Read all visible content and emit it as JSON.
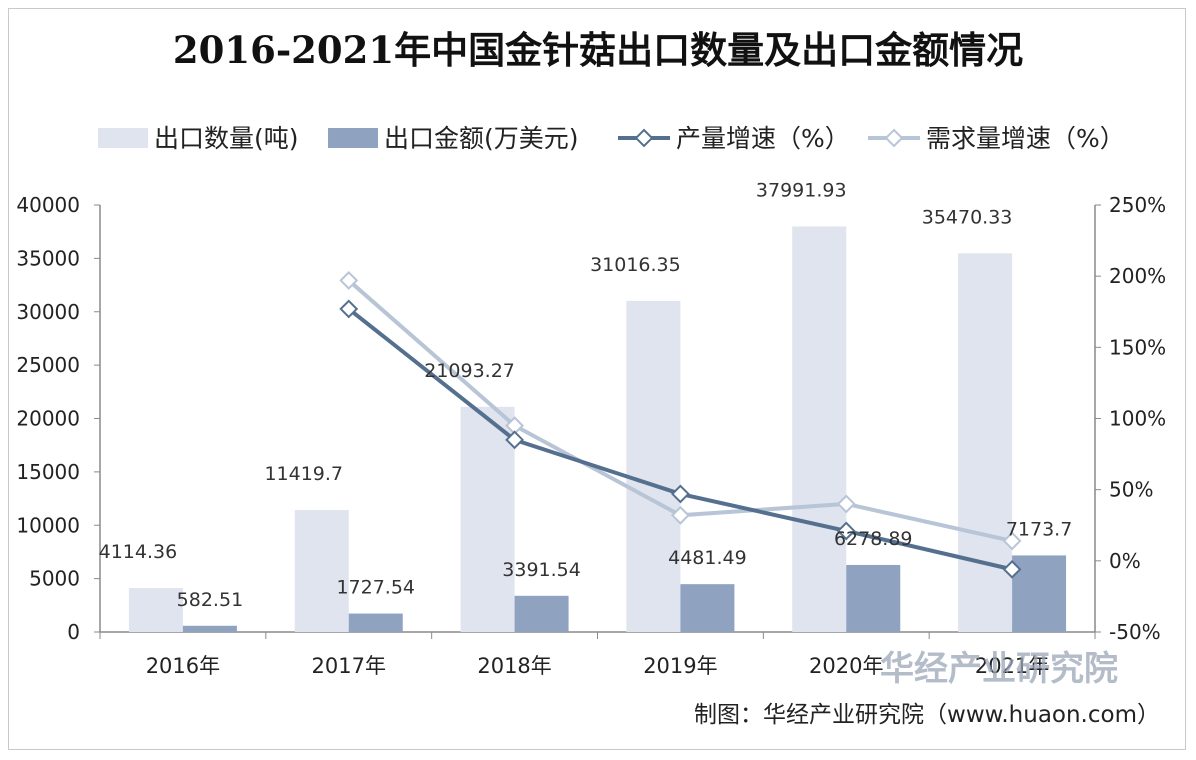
{
  "chart_data": {
    "type": "bar",
    "title": "2016-2021年中国金针菇出口数量及出口金额情况",
    "categories": [
      "2016年",
      "2017年",
      "2018年",
      "2019年",
      "2020年",
      "2021年"
    ],
    "bar_series": [
      {
        "name": "出口数量(吨)",
        "color": "#dfe4ee",
        "axis": "left",
        "values": [
          4114.36,
          11419.7,
          21093.27,
          31016.35,
          37991.93,
          35470.33
        ],
        "labels": [
          "4114.36",
          "11419.7",
          "21093.27",
          "31016.35",
          "37991.93",
          "35470.33"
        ]
      },
      {
        "name": "出口金额(万美元)",
        "color": "#8fa3c1",
        "axis": "left",
        "values": [
          582.51,
          1727.54,
          3391.54,
          4481.49,
          6278.89,
          7173.7
        ],
        "labels": [
          "582.51",
          "1727.54",
          "3391.54",
          "4481.49",
          "6278.89",
          "7173.7"
        ]
      }
    ],
    "line_series": [
      {
        "name": "产量增速（%）",
        "color": "#55708f",
        "axis": "right",
        "values": [
          null,
          177,
          85,
          47,
          21,
          -6
        ]
      },
      {
        "name": "需求量增速（%）",
        "color": "#b8c5d6",
        "axis": "right",
        "values": [
          null,
          197,
          95,
          32,
          40,
          14
        ]
      }
    ],
    "y_left": {
      "min": 0,
      "max": 40000,
      "step": 5000,
      "ticks": [
        "0",
        "5000",
        "10000",
        "15000",
        "20000",
        "25000",
        "30000",
        "35000",
        "40000"
      ]
    },
    "y_right": {
      "min": -50,
      "max": 250,
      "step": 50,
      "ticks": [
        "-50%",
        "0%",
        "50%",
        "100%",
        "150%",
        "200%",
        "250%"
      ]
    },
    "legend_position": "top",
    "grid": false
  },
  "watermark": "华经产业研究院",
  "credit": "制图：华经产业研究院（www.huaon.com）"
}
